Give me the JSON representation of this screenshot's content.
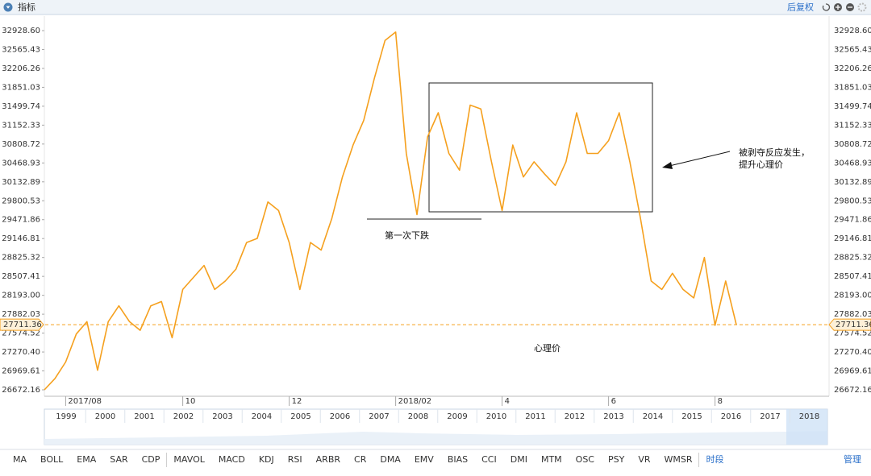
{
  "toolbar": {
    "title": "指标",
    "adjust": "后复权"
  },
  "chart_data": {
    "type": "line",
    "log_scale": true,
    "categories": [
      null,
      null,
      "2017/08",
      null,
      null,
      null,
      null,
      null,
      null,
      null,
      null,
      null,
      null,
      "10",
      null,
      null,
      null,
      null,
      null,
      null,
      null,
      null,
      null,
      "12",
      null,
      null,
      null,
      null,
      null,
      null,
      null,
      null,
      null,
      "2018/02",
      null,
      null,
      null,
      null,
      null,
      null,
      null,
      null,
      null,
      "4",
      null,
      null,
      null,
      null,
      null,
      null,
      null,
      null,
      null,
      "6",
      null,
      null,
      null,
      null,
      null,
      null,
      null,
      null,
      null,
      "8",
      null,
      null,
      null,
      null,
      null,
      null,
      null,
      null,
      null,
      null
    ],
    "series": [
      {
        "color": "#f5a01e",
        "values": [
          26672,
          26850,
          27110,
          27560,
          27760,
          26980,
          27760,
          28020,
          27760,
          27620,
          28020,
          28090,
          27500,
          28290,
          28490,
          28690,
          28290,
          28430,
          28630,
          29080,
          29150,
          29780,
          29630,
          29080,
          28290,
          29080,
          28950,
          29490,
          30220,
          30790,
          31240,
          32020,
          32740,
          32900,
          30640,
          29560,
          30940,
          31380,
          30640,
          30340,
          31520,
          31450,
          30490,
          29630,
          30790,
          30220,
          30490,
          30270,
          30070,
          30490,
          31380,
          30640,
          30640,
          30870,
          31380,
          30490,
          29490,
          28430,
          28290,
          28560,
          28290,
          28150,
          28825,
          27700,
          28430,
          27711.36,
          null,
          null,
          null,
          null,
          null,
          null,
          null,
          null
        ]
      }
    ],
    "ylim": [
      26672.16,
      32928.6
    ],
    "yticks": [
      {
        "value": 32928.6,
        "label": "32928.60"
      },
      32565.43,
      32206.26,
      31851.03,
      31499.74,
      31152.33,
      30808.72,
      30468.93,
      30132.89,
      29800.53,
      29471.86,
      29146.81,
      28825.32,
      28507.41,
      {
        "value": 28193,
        "label": "28193.00"
      },
      27882.03,
      27574.52,
      {
        "value": 27270.4,
        "label": "27270.40"
      },
      26969.61,
      26672.16
    ],
    "last_price": 27711.36,
    "annotations": [
      "第一次下跌",
      "被剥夺反应发生，",
      "提升心理价",
      "心理价"
    ]
  },
  "navigator": {
    "years": [
      "1999",
      "2000",
      "2001",
      "2002",
      "2003",
      "2004",
      "2005",
      "2006",
      "2007",
      "2008",
      "2009",
      "2010",
      "2011",
      "2012",
      "2013",
      "2014",
      "2015",
      "2016",
      "2017",
      "2018"
    ]
  },
  "indicators": {
    "group1": [
      "MA",
      "BOLL",
      "EMA",
      "SAR",
      "CDP"
    ],
    "group2": [
      "MAVOL",
      "MACD",
      "KDJ",
      "RSI",
      "ARBR",
      "CR",
      "DMA",
      "EMV",
      "BIAS",
      "CCI",
      "DMI",
      "MTM",
      "OSC",
      "PSY",
      "VR",
      "WMSR",
      "时段"
    ],
    "manage": "管理"
  }
}
